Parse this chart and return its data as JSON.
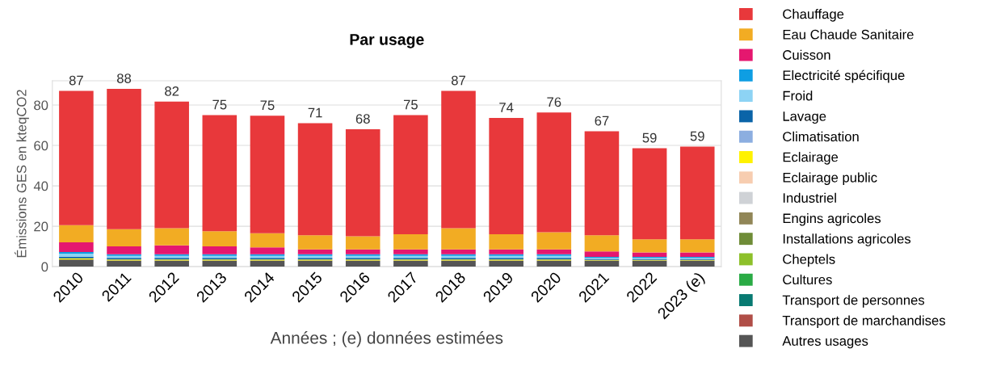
{
  "chart_data": {
    "type": "bar",
    "stacked": true,
    "title": "Par usage",
    "xlabel": "Années ; (e) données estimées",
    "ylabel": "Émissions GES en kteqCO2",
    "categories": [
      "2010",
      "2011",
      "2012",
      "2013",
      "2014",
      "2015",
      "2016",
      "2017",
      "2018",
      "2019",
      "2020",
      "2021",
      "2022",
      "2023 (e)"
    ],
    "series": [
      {
        "name": "Autres usages",
        "color": "#555555",
        "values": [
          3.5,
          3.0,
          3.0,
          3.0,
          3.0,
          3.0,
          3.0,
          3.0,
          3.0,
          3.0,
          3.0,
          3.0,
          3.0,
          3.0
        ]
      },
      {
        "name": "Transport de marchandises",
        "color": "#b04e47",
        "values": [
          0,
          0,
          0,
          0,
          0,
          0,
          0,
          0,
          0,
          0,
          0,
          0,
          0,
          0
        ]
      },
      {
        "name": "Transport de personnes",
        "color": "#087a72",
        "values": [
          0,
          0,
          0,
          0,
          0,
          0,
          0,
          0,
          0,
          0,
          0,
          0,
          0,
          0
        ]
      },
      {
        "name": "Cultures",
        "color": "#2aab45",
        "values": [
          0,
          0,
          0,
          0,
          0,
          0,
          0,
          0,
          0,
          0,
          0,
          0,
          0,
          0
        ]
      },
      {
        "name": "Cheptels",
        "color": "#8dc02a",
        "values": [
          0,
          0,
          0,
          0,
          0,
          0,
          0,
          0,
          0,
          0,
          0,
          0,
          0,
          0
        ]
      },
      {
        "name": "Installations agricoles",
        "color": "#6f8c37",
        "values": [
          0,
          0,
          0,
          0,
          0,
          0,
          0,
          0,
          0,
          0,
          0,
          0,
          0,
          0
        ]
      },
      {
        "name": "Engins agricoles",
        "color": "#918657",
        "values": [
          0,
          0,
          0,
          0,
          0,
          0,
          0,
          0,
          0,
          0,
          0,
          0,
          0,
          0
        ]
      },
      {
        "name": "Industriel",
        "color": "#cfd2d6",
        "values": [
          0,
          0,
          0,
          0,
          0,
          0,
          0,
          0,
          0,
          0,
          0,
          0,
          0,
          0
        ]
      },
      {
        "name": "Eclairage public",
        "color": "#f7cdb0",
        "values": [
          0,
          0,
          0,
          0,
          0,
          0,
          0,
          0,
          0,
          0,
          0,
          0,
          0,
          0
        ]
      },
      {
        "name": "Eclairage",
        "color": "#fff200",
        "values": [
          0.6,
          0.5,
          0.5,
          0.5,
          0.5,
          0.5,
          0.5,
          0.5,
          0.5,
          0.5,
          0.5,
          0.3,
          0.3,
          0.3
        ]
      },
      {
        "name": "Climatisation",
        "color": "#8caee0",
        "values": [
          0,
          0,
          0,
          0,
          0,
          0,
          0,
          0,
          0,
          0,
          0,
          0,
          0,
          0
        ]
      },
      {
        "name": "Lavage",
        "color": "#0a64a8",
        "values": [
          0.8,
          0.8,
          0.8,
          0.8,
          0.8,
          0.8,
          0.8,
          0.8,
          0.8,
          0.8,
          0.8,
          0.5,
          0.5,
          0.5
        ]
      },
      {
        "name": "Froid",
        "color": "#8dd3f4",
        "values": [
          1.5,
          1.0,
          1.0,
          1.0,
          1.0,
          1.0,
          1.0,
          1.0,
          1.0,
          1.0,
          1.0,
          0.5,
          0.5,
          0.5
        ]
      },
      {
        "name": "Electricité spécifique",
        "color": "#0e9ee3",
        "values": [
          0.8,
          0.8,
          0.8,
          0.8,
          0.8,
          0.8,
          0.8,
          0.8,
          0.8,
          0.8,
          0.8,
          0.5,
          0.5,
          0.5
        ]
      },
      {
        "name": "Cuisson",
        "color": "#e5176f",
        "values": [
          4.8,
          3.9,
          4.4,
          3.9,
          3.4,
          2.4,
          2.4,
          2.4,
          2.4,
          2.4,
          2.4,
          2.7,
          2.2,
          2.2
        ]
      },
      {
        "name": "Eau Chaude Sanitaire",
        "color": "#f2ac23",
        "values": [
          8.5,
          8.5,
          8.5,
          7.5,
          7.0,
          7.0,
          6.5,
          7.5,
          10.5,
          7.5,
          8.5,
          8.0,
          6.5,
          6.5
        ]
      },
      {
        "name": "Chauffage",
        "color": "#e8383b",
        "values": [
          66.5,
          69.5,
          62.7,
          57.5,
          58.2,
          55.5,
          53.0,
          59.0,
          68.0,
          57.6,
          59.3,
          51.5,
          45.1,
          45.9
        ]
      }
    ],
    "totals": [
      "87",
      "88",
      "82",
      "75",
      "75",
      "71",
      "68",
      "75",
      "87",
      "74",
      "76",
      "67",
      "59",
      "59"
    ],
    "ylim": [
      0,
      92
    ],
    "yticks": [
      0,
      20,
      40,
      60,
      80
    ],
    "grid": "y",
    "legend": "right"
  }
}
